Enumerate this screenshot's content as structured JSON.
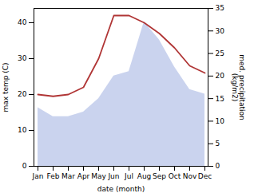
{
  "chart_data": {
    "type": "line",
    "categories": [
      "Jan",
      "Feb",
      "Mar",
      "Apr",
      "May",
      "Jun",
      "Jul",
      "Aug",
      "Sep",
      "Oct",
      "Nov",
      "Dec"
    ],
    "xlabel": "date (month)",
    "ylabel": "max temp (C)",
    "y2label": "med. precipitation\n(kg/m2)",
    "ylim": [
      0,
      44
    ],
    "yticks": [
      0,
      10,
      20,
      30,
      40
    ],
    "y2lim": [
      0,
      35
    ],
    "y2ticks": [
      0,
      5,
      10,
      15,
      20,
      25,
      30,
      35
    ],
    "grid": false,
    "series": [
      {
        "type": "area",
        "axis": "y2",
        "color": "#b8c4e8",
        "values": [
          13,
          11,
          11,
          12,
          15,
          20,
          21,
          32,
          28,
          22,
          17,
          16
        ]
      },
      {
        "type": "line",
        "color": "#b03535",
        "values": [
          20,
          19.5,
          20,
          22,
          30,
          42,
          42,
          40,
          37,
          33,
          28,
          26
        ]
      }
    ]
  }
}
